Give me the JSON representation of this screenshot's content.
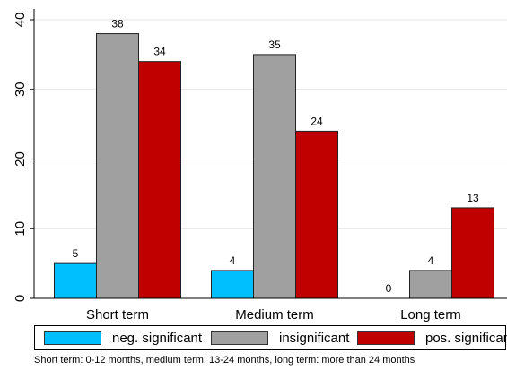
{
  "chart_data": {
    "type": "bar",
    "categories": [
      "Short term",
      "Medium term",
      "Long term"
    ],
    "series": [
      {
        "name": "neg. significant",
        "values": [
          5,
          4,
          0
        ],
        "color": "#00bfff"
      },
      {
        "name": "insignificant",
        "values": [
          38,
          35,
          4
        ],
        "color": "#a0a0a0"
      },
      {
        "name": "pos. significant",
        "values": [
          34,
          24,
          13
        ],
        "color": "#c00000"
      }
    ],
    "yticks": [
      0,
      10,
      20,
      30,
      40
    ],
    "ylim": [
      0,
      40
    ],
    "grid": true,
    "legend": "bottom",
    "note": "Short term: 0-12 months, medium term: 13-24 months, long term: more than 24 months"
  }
}
